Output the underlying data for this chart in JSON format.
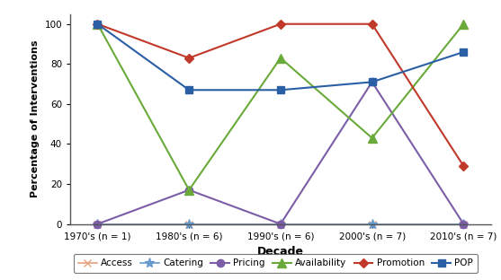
{
  "x_labels": [
    "1970's (n = 1)",
    "1980's (n = 6)",
    "1990's (n = 6)",
    "2000's (n = 7)",
    "2010's (n = 7)"
  ],
  "series": [
    {
      "name": "Access",
      "values": [
        0,
        0,
        0,
        0,
        0
      ],
      "color": "#e8a080",
      "marker": "x",
      "linewidth": 1.2,
      "markersize": 6
    },
    {
      "name": "Catering",
      "values": [
        0,
        0,
        0,
        0,
        0
      ],
      "color": "#6699cc",
      "marker": "*",
      "linewidth": 1.2,
      "markersize": 8
    },
    {
      "name": "Pricing",
      "values": [
        0,
        17,
        0,
        71,
        0
      ],
      "color": "#7b5ea7",
      "marker": "o",
      "linewidth": 1.5,
      "markersize": 6
    },
    {
      "name": "Availability",
      "values": [
        100,
        17,
        83,
        43,
        100
      ],
      "color": "#6aaa3a",
      "marker": "^",
      "linewidth": 1.5,
      "markersize": 7
    },
    {
      "name": "Promotion",
      "values": [
        100,
        83,
        100,
        100,
        29
      ],
      "color": "#c0392b",
      "marker": "D",
      "linewidth": 1.5,
      "markersize": 5
    },
    {
      "name": "POP",
      "values": [
        100,
        67,
        67,
        71,
        86
      ],
      "color": "#2b5fa5",
      "marker": "s",
      "linewidth": 1.5,
      "markersize": 6
    }
  ],
  "xlabel": "Decade",
  "ylabel": "Percentage of Interventions",
  "ylim": [
    0,
    105
  ],
  "yticks": [
    0,
    20,
    40,
    60,
    80,
    100
  ],
  "legend_ncol": 6,
  "background_color": "#ffffff"
}
